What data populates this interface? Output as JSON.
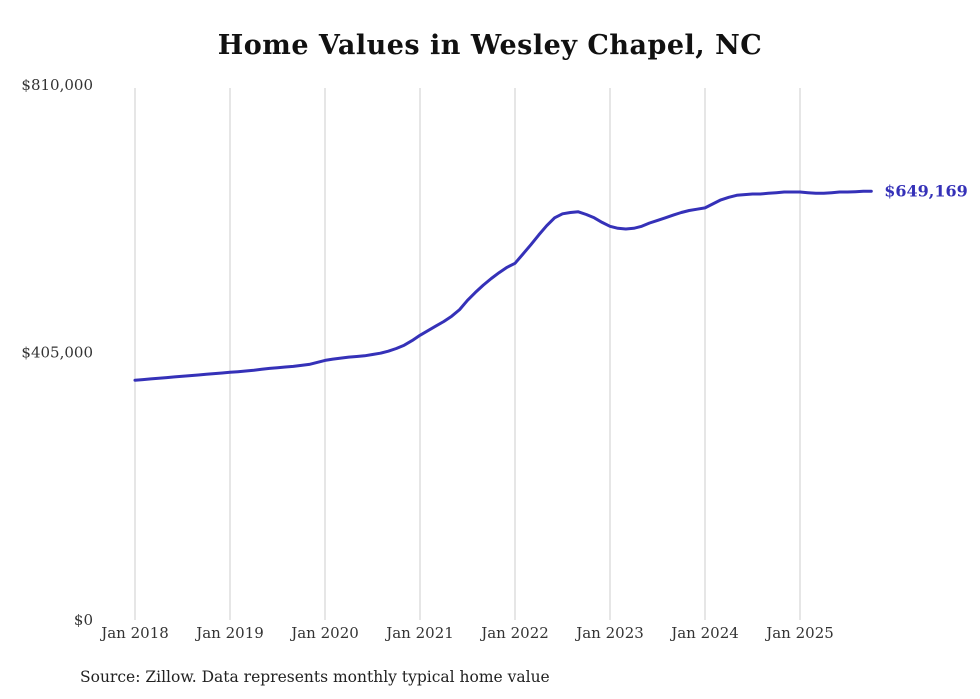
{
  "page": {
    "title": "Home Values in Wesley Chapel, NC",
    "source_note": "Source: Zillow. Data represents monthly typical home value"
  },
  "chart_data": {
    "type": "line",
    "title": "Home Values in Wesley Chapel, NC",
    "series_name": "Monthly typical home value",
    "xlabel": "",
    "ylabel": "",
    "ylim": [
      0,
      810000
    ],
    "y_ticks": [
      0,
      405000,
      810000
    ],
    "y_tick_labels": [
      "$0",
      "$405,000",
      "$810,000"
    ],
    "x_tick_labels": [
      "Jan 2018",
      "Jan 2019",
      "Jan 2020",
      "Jan 2021",
      "Jan 2022",
      "Jan 2023",
      "Jan 2024",
      "Jan 2025"
    ],
    "grid": "vertical-only",
    "legend": "none",
    "end_label": "$649,169",
    "end_value": 649169,
    "line_color": "#3531b8",
    "grid_color": "#cccccc",
    "label_color": "#333333",
    "months": [
      "2018-01",
      "2018-02",
      "2018-03",
      "2018-04",
      "2018-05",
      "2018-06",
      "2018-07",
      "2018-08",
      "2018-09",
      "2018-10",
      "2018-11",
      "2018-12",
      "2019-01",
      "2019-02",
      "2019-03",
      "2019-04",
      "2019-05",
      "2019-06",
      "2019-07",
      "2019-08",
      "2019-09",
      "2019-10",
      "2019-11",
      "2019-12",
      "2020-01",
      "2020-02",
      "2020-03",
      "2020-04",
      "2020-05",
      "2020-06",
      "2020-07",
      "2020-08",
      "2020-09",
      "2020-10",
      "2020-11",
      "2020-12",
      "2021-01",
      "2021-02",
      "2021-03",
      "2021-04",
      "2021-05",
      "2021-06",
      "2021-07",
      "2021-08",
      "2021-09",
      "2021-10",
      "2021-11",
      "2021-12",
      "2022-01",
      "2022-02",
      "2022-03",
      "2022-04",
      "2022-05",
      "2022-06",
      "2022-07",
      "2022-08",
      "2022-09",
      "2022-10",
      "2022-11",
      "2022-12",
      "2023-01",
      "2023-02",
      "2023-03",
      "2023-04",
      "2023-05",
      "2023-06",
      "2023-07",
      "2023-08",
      "2023-09",
      "2023-10",
      "2023-11",
      "2023-12",
      "2024-01",
      "2024-02",
      "2024-03",
      "2024-04",
      "2024-05",
      "2024-06",
      "2024-07",
      "2024-08",
      "2024-09",
      "2024-10",
      "2024-11",
      "2024-12",
      "2025-01",
      "2025-02",
      "2025-03",
      "2025-04",
      "2025-05",
      "2025-06",
      "2025-07",
      "2025-08",
      "2025-09",
      "2025-10"
    ],
    "values": [
      363000,
      364000,
      365000,
      366000,
      367000,
      368000,
      369000,
      370000,
      371000,
      372000,
      373000,
      374000,
      375000,
      376000,
      377000,
      378000,
      379500,
      381000,
      382000,
      383000,
      384000,
      385500,
      387000,
      390000,
      393000,
      395000,
      396500,
      398000,
      399000,
      400000,
      402000,
      404000,
      407000,
      411000,
      416000,
      423000,
      431000,
      438000,
      445000,
      452000,
      460000,
      470000,
      484000,
      496000,
      507000,
      517000,
      526000,
      534000,
      540000,
      554000,
      568000,
      583000,
      597000,
      609000,
      615000,
      617000,
      618000,
      614000,
      609000,
      602000,
      596000,
      593000,
      592000,
      593000,
      596000,
      601000,
      605000,
      609000,
      613000,
      617000,
      620000,
      622000,
      624000,
      630000,
      636000,
      640000,
      643000,
      644000,
      645000,
      645000,
      646000,
      647000,
      648000,
      648000,
      648000,
      647000,
      646000,
      646000,
      647000,
      648000,
      648000,
      648500,
      649000,
      649169
    ]
  }
}
